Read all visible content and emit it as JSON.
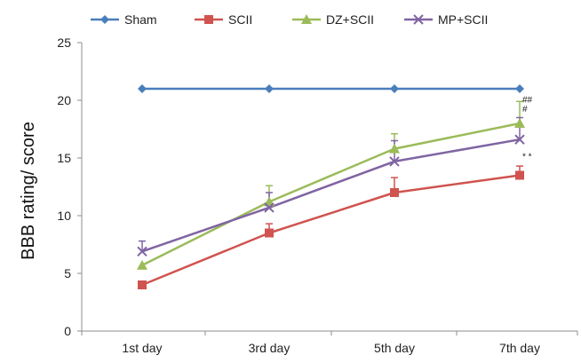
{
  "chart_data": {
    "type": "line",
    "title": "",
    "xlabel": "",
    "ylabel": "BBB rating/ score",
    "categories": [
      "1st day",
      "3rd day",
      "5th day",
      "7th day"
    ],
    "ylim": [
      0,
      25
    ],
    "yticks": [
      0,
      5,
      10,
      15,
      20,
      25
    ],
    "grid": false,
    "legend_position": "top",
    "series": [
      {
        "name": "Sham",
        "values": [
          21,
          21,
          21,
          21
        ],
        "errors": [
          0,
          0,
          0,
          0
        ],
        "color": "#4a7ebb",
        "marker": "diamond"
      },
      {
        "name": "SCII",
        "values": [
          4,
          8.5,
          12,
          13.5
        ],
        "errors": [
          0,
          0.8,
          1.3,
          0.8
        ],
        "color": "#d0534f",
        "marker": "square"
      },
      {
        "name": "DZ+SCII",
        "values": [
          5.7,
          11.2,
          15.8,
          18
        ],
        "errors": [
          0,
          1.4,
          1.3,
          1.9
        ],
        "color": "#9bbb59",
        "marker": "triangle"
      },
      {
        "name": "MP+SCII",
        "values": [
          6.9,
          10.7,
          14.7,
          16.6
        ],
        "errors": [
          0.9,
          1.3,
          1.8,
          1.9
        ],
        "color": "#8064a2",
        "marker": "x"
      }
    ],
    "annotations": [
      {
        "text": "##",
        "category_index": 3,
        "y": 19.8
      },
      {
        "text": "#",
        "category_index": 3,
        "y": 19.0
      },
      {
        "text": "* *",
        "category_index": 3,
        "y": 14.9
      }
    ]
  }
}
